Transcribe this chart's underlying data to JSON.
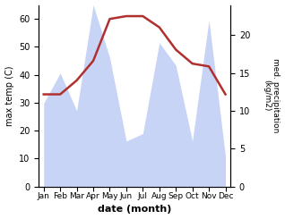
{
  "months": [
    "Jan",
    "Feb",
    "Mar",
    "Apr",
    "May",
    "Jun",
    "Jul",
    "Aug",
    "Sep",
    "Oct",
    "Nov",
    "Dec"
  ],
  "temperature": [
    33,
    33,
    38,
    45,
    60,
    61,
    61,
    57,
    49,
    44,
    43,
    33
  ],
  "precipitation": [
    11,
    15,
    10,
    24,
    17,
    6,
    7,
    19,
    16,
    6,
    22,
    4
  ],
  "temp_color": "#b03030",
  "precip_fill_color": "#c8d4f5",
  "ylabel_left": "max temp (C)",
  "ylabel_right": "med. precipitation\n(kg/m2)",
  "xlabel": "date (month)",
  "ylim_left": [
    0,
    65
  ],
  "ylim_right": [
    0,
    24
  ],
  "yticks_left": [
    0,
    10,
    20,
    30,
    40,
    50,
    60
  ],
  "yticks_right": [
    0,
    5,
    10,
    15,
    20
  ],
  "bg_color": "#ffffff",
  "line_width": 1.8,
  "figsize": [
    3.18,
    2.45
  ],
  "dpi": 100
}
